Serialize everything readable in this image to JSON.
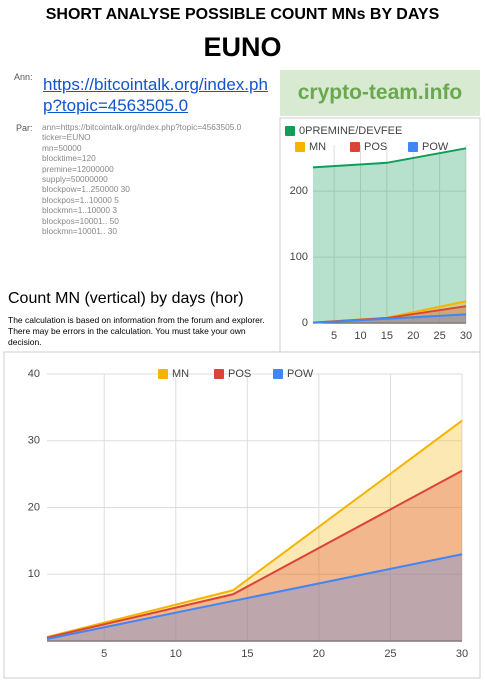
{
  "header": {
    "title": "SHORT ANALYSE POSSIBLE COUNT MNs BY DAYS",
    "ticker": "EUNO"
  },
  "ann": {
    "label": "Ann:",
    "link": "https://bitcointalk.org/index.php?topic=4563505.0"
  },
  "brand": "crypto-team.info",
  "params": {
    "label": "Par:",
    "lines": [
      "ann=https://bitcointalk.org/index.php?topic=4563505.0",
      "ticker=EUNO",
      "mn=50000",
      "blocktime=120",
      "premine=12000000",
      "supply=50000000",
      "blockpow=1..250000 30",
      "blockpos=1..10000 5",
      "blockmn=1..10000 3",
      "blockpos=10001.. 50",
      "blockmn=10001.. 30"
    ]
  },
  "section": {
    "title": "Count MN (vertical) by days (hor)",
    "text": "The calculation is based on information from the forum and explorer. There may be errors in the calculation. You must take your own decision."
  },
  "chart_data": [
    {
      "type": "area",
      "x": [
        1,
        15,
        30
      ],
      "series": [
        {
          "name": "0PREMINE/DEVFEE",
          "color": "#0f9d58",
          "values": [
            236,
            243,
            265
          ]
        },
        {
          "name": "MN",
          "color": "#f4b400",
          "values": [
            0.6,
            8,
            33
          ]
        },
        {
          "name": "POS",
          "color": "#db4437",
          "values": [
            0.5,
            7.5,
            25.5
          ]
        },
        {
          "name": "POW",
          "color": "#4285f4",
          "values": [
            0.3,
            6.5,
            13
          ]
        }
      ],
      "xlim": [
        1,
        30
      ],
      "xticks": [
        5,
        10,
        15,
        20,
        25,
        30
      ],
      "ylim": [
        0,
        270
      ],
      "yticks": [
        0,
        100,
        200
      ],
      "grid": true,
      "legend": "top"
    },
    {
      "type": "area",
      "x": [
        1,
        14,
        30
      ],
      "series": [
        {
          "name": "MN",
          "color": "#f4b400",
          "values": [
            0.6,
            7.6,
            33
          ]
        },
        {
          "name": "POS",
          "color": "#db4437",
          "values": [
            0.5,
            7,
            25.5
          ]
        },
        {
          "name": "POW",
          "color": "#4285f4",
          "values": [
            0.3,
            6,
            13
          ]
        }
      ],
      "xlim": [
        1,
        30
      ],
      "xticks": [
        5,
        10,
        15,
        20,
        25,
        30
      ],
      "ylim": [
        0,
        40
      ],
      "yticks": [
        10,
        20,
        30,
        40
      ],
      "grid": true,
      "legend": "top"
    }
  ]
}
